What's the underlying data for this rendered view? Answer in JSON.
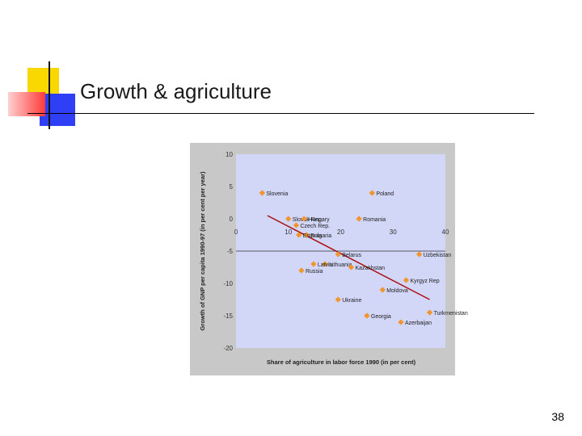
{
  "slide": {
    "title": "Growth & agriculture",
    "page_number": "38",
    "accent_colors": {
      "yellow": "#f8d800",
      "red": "#ff3a3a",
      "blue": "#2f3ff5"
    }
  },
  "chart_data": {
    "type": "scatter",
    "title": "",
    "xlabel": "Share of agriculture in labor force 1990 (in per cent)",
    "ylabel": "Growth of GNP per capita 1990-97 (in per cent per year)",
    "xlim": [
      0,
      40
    ],
    "ylim": [
      -20,
      10
    ],
    "x_ticks": [
      0,
      10,
      20,
      30,
      40
    ],
    "y_ticks": [
      10,
      5,
      0,
      -5,
      -10,
      -15,
      -20
    ],
    "points": [
      {
        "label": "Slovenia",
        "x": 5,
        "y": 4
      },
      {
        "label": "Poland",
        "x": 26,
        "y": 4
      },
      {
        "label": "Slovak Rep.",
        "x": 10,
        "y": 0
      },
      {
        "label": "Hungary",
        "x": 13,
        "y": 0
      },
      {
        "label": "Czech Rep.",
        "x": 11.5,
        "y": -1
      },
      {
        "label": "Romania",
        "x": 23.5,
        "y": 0
      },
      {
        "label": "Bulgaria",
        "x": 13.5,
        "y": -2.5
      },
      {
        "label": "Estonia",
        "x": 12,
        "y": -2.5
      },
      {
        "label": "Belarus",
        "x": 19.5,
        "y": -5.5
      },
      {
        "label": "Lithuania",
        "x": 17,
        "y": -7
      },
      {
        "label": "Latvia",
        "x": 14.8,
        "y": -7
      },
      {
        "label": "Russia",
        "x": 12.5,
        "y": -8
      },
      {
        "label": "Kazakhstan",
        "x": 22,
        "y": -7.5
      },
      {
        "label": "Uzbekistan",
        "x": 35,
        "y": -5.5
      },
      {
        "label": "Kyrgyz Rep",
        "x": 32.5,
        "y": -9.5
      },
      {
        "label": "Moldova",
        "x": 28,
        "y": -11
      },
      {
        "label": "Ukraine",
        "x": 19.5,
        "y": -12.5
      },
      {
        "label": "Georgia",
        "x": 25,
        "y": -15
      },
      {
        "label": "Turkmenistan",
        "x": 37,
        "y": -14.5
      },
      {
        "label": "Azerbaijan",
        "x": 31.5,
        "y": -16
      }
    ],
    "trendline": {
      "x": [
        6,
        37
      ],
      "y": [
        0.5,
        -12.5
      ],
      "color": "#aa1010"
    },
    "colors": {
      "plot_bg": "#d2d6f7",
      "frame_bg": "#c8c8c8",
      "marker": "#f0962c"
    },
    "legend": "none"
  }
}
